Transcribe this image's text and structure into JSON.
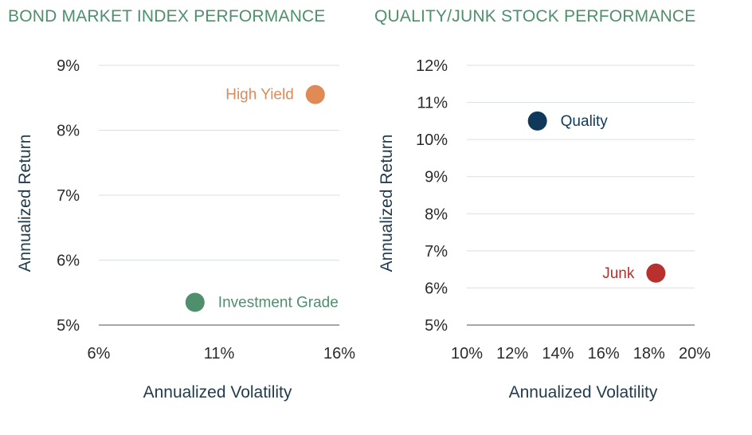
{
  "chart_data": [
    {
      "type": "scatter",
      "title": "BOND MARKET INDEX PERFORMANCE",
      "xlabel": "Annualized Volatility",
      "ylabel": "Annualized Return",
      "xlim": [
        6,
        16
      ],
      "ylim": [
        5,
        9
      ],
      "xticks": [
        "6%",
        "11%",
        "16%"
      ],
      "xtick_values": [
        6,
        11,
        16
      ],
      "yticks": [
        "5%",
        "6%",
        "7%",
        "8%",
        "9%"
      ],
      "ytick_values": [
        5,
        6,
        7,
        8,
        9
      ],
      "grid": true,
      "points": [
        {
          "label": "High Yield",
          "x": 15.0,
          "y": 8.55,
          "color": "#e08a55",
          "label_side": "left"
        },
        {
          "label": "Investment Grade",
          "x": 10.0,
          "y": 5.35,
          "color": "#4e8f6e",
          "label_side": "right"
        }
      ]
    },
    {
      "type": "scatter",
      "title": "QUALITY/JUNK STOCK PERFORMANCE",
      "xlabel": "Annualized Volatility",
      "ylabel": "Annualized Return",
      "xlim": [
        10,
        20
      ],
      "ylim": [
        5,
        12
      ],
      "xticks": [
        "10%",
        "12%",
        "14%",
        "16%",
        "18%",
        "20%"
      ],
      "xtick_values": [
        10,
        12,
        14,
        16,
        18,
        20
      ],
      "yticks": [
        "5%",
        "6%",
        "7%",
        "8%",
        "9%",
        "10%",
        "11%",
        "12%"
      ],
      "ytick_values": [
        5,
        6,
        7,
        8,
        9,
        10,
        11,
        12
      ],
      "grid": true,
      "points": [
        {
          "label": "Quality",
          "x": 13.1,
          "y": 10.5,
          "color": "#10385a",
          "label_side": "right"
        },
        {
          "label": "Junk",
          "x": 18.3,
          "y": 6.4,
          "color": "#b8312f",
          "label_side": "left"
        }
      ]
    }
  ],
  "colors": {
    "title": "#4e8f6e",
    "axis_label": "#223c4e",
    "grid": "#d9dfe4",
    "axis": "#8a8a8a",
    "tick_text": "#2b2b2b"
  }
}
